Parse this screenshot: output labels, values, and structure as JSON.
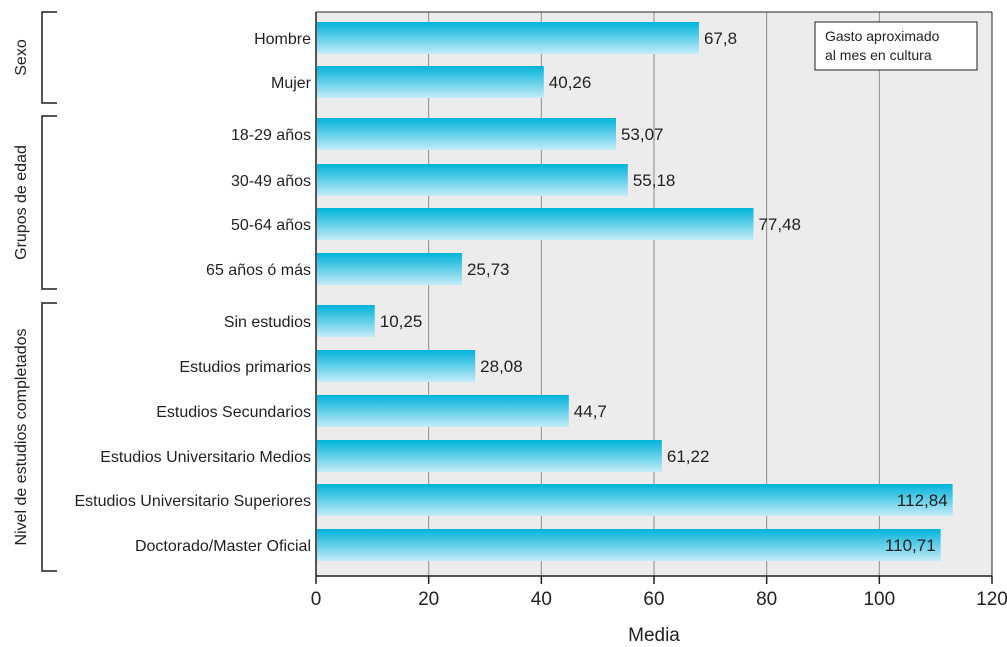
{
  "chart_data": {
    "type": "bar",
    "orientation": "horizontal",
    "xlabel": "Media",
    "xlim": [
      0,
      120
    ],
    "xticks": [
      0,
      20,
      40,
      60,
      80,
      100,
      120
    ],
    "xtick_labels": [
      "0",
      "20",
      "40",
      "60",
      "80",
      "100",
      "120"
    ],
    "grid": "vertical",
    "legend_box": {
      "text_line1": "Gasto aproximado",
      "text_line2": "al mes en cultura",
      "position": "top-right"
    },
    "groups": [
      {
        "label": "Sexo",
        "categories": [
          "Hombre",
          "Mujer"
        ],
        "values": [
          67.8,
          40.26
        ],
        "value_labels": [
          "67,8",
          "40,26"
        ]
      },
      {
        "label": "Grupos de edad",
        "categories": [
          "18-29 años",
          "30-49 años",
          "50-64 años",
          "65 años ó más"
        ],
        "values": [
          53.07,
          55.18,
          77.48,
          25.73
        ],
        "value_labels": [
          "53,07",
          "55,18",
          "77,48",
          "25,73"
        ]
      },
      {
        "label": "Nivel de estudios completados",
        "categories": [
          "Sin estudios",
          "Estudios primarios",
          "Estudios Secundarios",
          "Estudios Universitario Medios",
          "Estudios Universitario Superiores",
          "Doctorado/Master Oficial"
        ],
        "values": [
          10.25,
          28.08,
          44.7,
          61.22,
          112.84,
          110.71
        ],
        "value_labels": [
          "10,25",
          "28,08",
          "44,7",
          "61,22",
          "112,84",
          "110,71"
        ]
      }
    ],
    "colors": {
      "bar_top": "#00b3db",
      "bar_bottom": "#c4ecf7",
      "plot_background": "#ececec",
      "gridline": "#8c8c8c",
      "axis": "#231f20"
    }
  }
}
